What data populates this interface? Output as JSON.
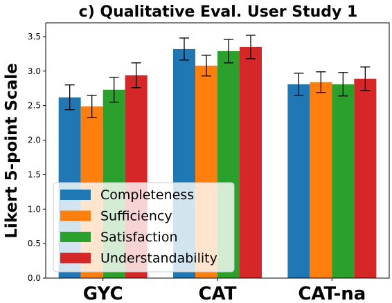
{
  "chart_data": {
    "type": "bar",
    "title": "c) Qualitative Eval. User Study 1",
    "xlabel": "",
    "ylabel": "Likert 5-point Scale",
    "categories": [
      "GYC",
      "CAT",
      "CAT-na"
    ],
    "ylim": [
      0,
      3.7
    ],
    "yticks": [
      "0.0",
      "0.5",
      "1.0",
      "1.5",
      "2.0",
      "2.5",
      "3.0",
      "3.5"
    ],
    "legend_position": "lower-left",
    "grid": false,
    "series": [
      {
        "name": "Completeness",
        "color": "#1f77b4",
        "values": [
          2.62,
          3.32,
          2.81
        ],
        "errors": [
          0.18,
          0.16,
          0.16
        ]
      },
      {
        "name": "Sufficiency",
        "color": "#ff7f0e",
        "values": [
          2.49,
          3.08,
          2.84
        ],
        "errors": [
          0.16,
          0.15,
          0.15
        ]
      },
      {
        "name": "Satisfaction",
        "color": "#2ca02c",
        "values": [
          2.73,
          3.29,
          2.81
        ],
        "errors": [
          0.18,
          0.17,
          0.17
        ]
      },
      {
        "name": "Understandability",
        "color": "#d62728",
        "values": [
          2.94,
          3.35,
          2.89
        ],
        "errors": [
          0.18,
          0.17,
          0.17
        ]
      }
    ]
  }
}
